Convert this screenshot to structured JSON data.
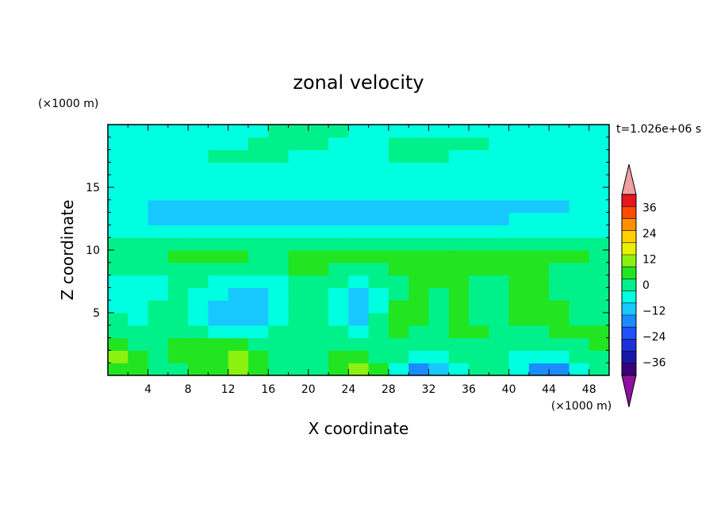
{
  "chart_data": {
    "type": "heatmap",
    "title": "zonal velocity",
    "xlabel": "X coordinate",
    "ylabel": "Z coordinate",
    "x_unit": "(×1000 m)",
    "y_unit": "(×1000 m)",
    "time_label": "t=1.026e+06 s",
    "xlim": [
      0,
      50
    ],
    "ylim": [
      0,
      20
    ],
    "x_ticks": [
      4,
      8,
      12,
      16,
      20,
      24,
      28,
      32,
      36,
      40,
      44,
      48
    ],
    "y_ticks": [
      5,
      10,
      15
    ],
    "colorbar": {
      "levels": [
        -42,
        -36,
        -30,
        -24,
        -18,
        -12,
        -6,
        0,
        6,
        12,
        18,
        24,
        30,
        36,
        42
      ],
      "colors": [
        "#3a0078",
        "#1818a8",
        "#1f2fd8",
        "#2050ff",
        "#1a8cff",
        "#18c8ff",
        "#00ffe0",
        "#00f08a",
        "#22e522",
        "#8cf010",
        "#e8f000",
        "#ffd000",
        "#ff9000",
        "#ff4a00",
        "#e8141e"
      ],
      "under_color": "#8e10a0",
      "over_color": "#f0a0a0",
      "tick_labels": [
        "36",
        "24",
        "12",
        "0",
        "−12",
        "−24",
        "−36"
      ],
      "tick_values": [
        36,
        24,
        12,
        0,
        -12,
        -24,
        -36
      ]
    },
    "field": {
      "description_grid_note": "Approximate contour field sampled on a 25x20 grid (x 0–50 step 2, z 0–19 step 1)",
      "x": [
        1,
        3,
        5,
        7,
        9,
        11,
        13,
        15,
        17,
        19,
        21,
        23,
        25,
        27,
        29,
        31,
        33,
        35,
        37,
        39,
        41,
        43,
        45,
        47,
        49
      ],
      "z": [
        0.5,
        1.5,
        2.5,
        3.5,
        4.5,
        5.5,
        6.5,
        7.5,
        8.5,
        9.5,
        10.5,
        11.5,
        12.5,
        13.5,
        14.5,
        15.5,
        16.5,
        17.5,
        18.5,
        19.5
      ],
      "values": [
        [
          10,
          8,
          2,
          4,
          6,
          9,
          12,
          8,
          3,
          0,
          4,
          10,
          12,
          8,
          -4,
          -14,
          -8,
          -2,
          2,
          4,
          -6,
          -16,
          -14,
          -4,
          2
        ],
        [
          12,
          8,
          4,
          6,
          8,
          10,
          12,
          8,
          4,
          0,
          2,
          6,
          8,
          4,
          0,
          -6,
          -4,
          0,
          2,
          2,
          -2,
          -6,
          -4,
          0,
          4
        ],
        [
          8,
          4,
          4,
          6,
          6,
          6,
          6,
          4,
          2,
          2,
          2,
          4,
          4,
          4,
          2,
          0,
          2,
          4,
          4,
          2,
          2,
          0,
          2,
          4,
          6
        ],
        [
          4,
          0,
          4,
          4,
          0,
          -4,
          -6,
          -4,
          2,
          4,
          2,
          0,
          -4,
          2,
          6,
          4,
          4,
          6,
          6,
          4,
          4,
          4,
          6,
          8,
          6
        ],
        [
          0,
          -4,
          2,
          2,
          -6,
          -8,
          -10,
          -10,
          -4,
          4,
          2,
          -4,
          -8,
          0,
          6,
          6,
          4,
          6,
          4,
          4,
          6,
          6,
          6,
          4,
          4
        ],
        [
          -2,
          -6,
          0,
          2,
          -4,
          -8,
          -12,
          -12,
          -6,
          4,
          2,
          -6,
          -12,
          -4,
          6,
          8,
          4,
          6,
          2,
          4,
          6,
          6,
          6,
          4,
          4
        ],
        [
          -4,
          -6,
          -2,
          2,
          -2,
          -6,
          -8,
          -8,
          -4,
          4,
          2,
          -4,
          -10,
          -4,
          4,
          8,
          4,
          6,
          2,
          4,
          6,
          6,
          4,
          4,
          2
        ],
        [
          -2,
          -4,
          -2,
          2,
          0,
          -4,
          -6,
          -6,
          -2,
          4,
          4,
          0,
          -4,
          0,
          4,
          6,
          6,
          6,
          4,
          4,
          6,
          6,
          4,
          4,
          2
        ],
        [
          2,
          0,
          0,
          4,
          4,
          2,
          0,
          0,
          2,
          6,
          6,
          4,
          2,
          4,
          6,
          6,
          6,
          6,
          6,
          6,
          8,
          6,
          4,
          4,
          4
        ],
        [
          4,
          4,
          4,
          6,
          6,
          6,
          6,
          4,
          4,
          6,
          6,
          6,
          6,
          6,
          6,
          6,
          6,
          6,
          6,
          6,
          10,
          8,
          6,
          6,
          4
        ],
        [
          4,
          4,
          4,
          4,
          4,
          4,
          4,
          4,
          4,
          4,
          4,
          4,
          4,
          4,
          4,
          4,
          4,
          4,
          4,
          4,
          4,
          4,
          4,
          4,
          4
        ],
        [
          -2,
          -2,
          -2,
          -2,
          -2,
          -2,
          -2,
          -2,
          -2,
          -2,
          -2,
          -2,
          -2,
          -2,
          -2,
          -2,
          -2,
          -2,
          -2,
          -2,
          -2,
          -2,
          -2,
          -2,
          -2
        ],
        [
          -6,
          -6,
          -7,
          -7,
          -7,
          -7,
          -7,
          -7,
          -7,
          -7,
          -7,
          -7,
          -7,
          -7,
          -7,
          -7,
          -7,
          -7,
          -7,
          -7,
          -6,
          -6,
          -6,
          -6,
          -6
        ],
        [
          -6,
          -6,
          -7,
          -7,
          -7,
          -8,
          -8,
          -8,
          -8,
          -8,
          -8,
          -9,
          -9,
          -9,
          -9,
          -8,
          -8,
          -8,
          -8,
          -8,
          -8,
          -7,
          -7,
          -6,
          -6
        ],
        [
          -4,
          -4,
          -4,
          -4,
          -5,
          -5,
          -5,
          -5,
          -5,
          -5,
          -5,
          -6,
          -6,
          -6,
          -6,
          -6,
          -5,
          -5,
          -5,
          -5,
          -5,
          -5,
          -5,
          -4,
          -4
        ],
        [
          -2,
          -2,
          -2,
          -2,
          -2,
          -2,
          -2,
          -2,
          -2,
          -2,
          -2,
          -2,
          -3,
          -3,
          -3,
          -3,
          -3,
          -2,
          -2,
          -2,
          -2,
          -2,
          -2,
          -2,
          -2
        ],
        [
          -2,
          -2,
          -2,
          -2,
          -2,
          -2,
          -1,
          -1,
          -1,
          -1,
          -2,
          -2,
          -2,
          -2,
          -2,
          -2,
          -2,
          -2,
          -2,
          -2,
          -2,
          -2,
          -2,
          -2,
          -2
        ],
        [
          -2,
          -2,
          -2,
          -2,
          -2,
          1,
          2,
          2,
          1,
          -1,
          -1,
          -2,
          -2,
          -1,
          1,
          2,
          1,
          -1,
          -2,
          -2,
          -2,
          -2,
          -2,
          -2,
          -2
        ],
        [
          -2,
          -2,
          -2,
          -2,
          -2,
          -2,
          -1,
          1,
          2,
          2,
          1,
          -1,
          -2,
          -1,
          1,
          2,
          2,
          2,
          1,
          -1,
          -2,
          -2,
          -2,
          -2,
          -2
        ],
        [
          -2,
          -2,
          -2,
          -2,
          -2,
          -2,
          -2,
          -1,
          1,
          2,
          2,
          1,
          -1,
          -2,
          -2,
          -2,
          -2,
          -2,
          -2,
          -2,
          -2,
          -2,
          -2,
          -2,
          -2
        ]
      ]
    }
  }
}
